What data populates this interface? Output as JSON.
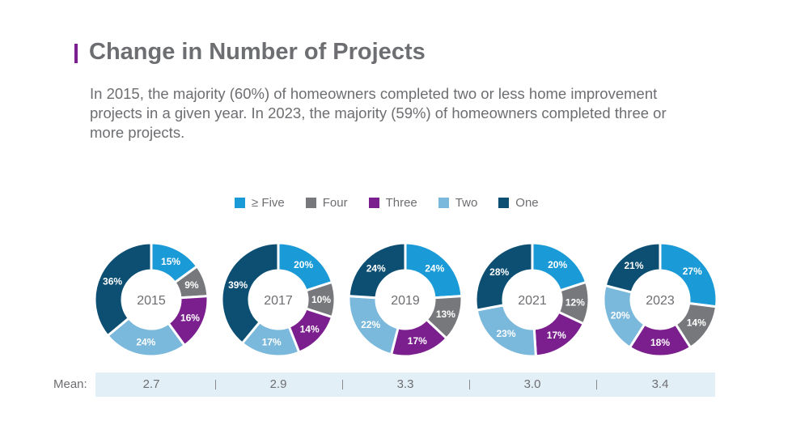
{
  "title": "Change in Number of Projects",
  "subtitle": "In 2015, the majority (60%) of homeowners completed two or less home improvement projects in a given year. In 2023, the majority (59%) of homeowners completed three or more projects.",
  "colors": {
    "accent": "#7b1f8f",
    "text": "#6d6e71",
    "mean_band": "#e3eff7"
  },
  "chart_data": {
    "type": "pie",
    "variant": "donut",
    "legend_position": "top",
    "categories": [
      "≥ Five",
      "Four",
      "Three",
      "Two",
      "One"
    ],
    "category_colors": [
      "#1a9ad6",
      "#77787b",
      "#7b1f8f",
      "#7ab8dc",
      "#0d4f73"
    ],
    "charts": [
      {
        "label": "2015",
        "values": [
          15,
          9,
          16,
          24,
          36
        ]
      },
      {
        "label": "2017",
        "values": [
          20,
          10,
          14,
          17,
          39
        ]
      },
      {
        "label": "2019",
        "values": [
          24,
          13,
          17,
          22,
          24
        ]
      },
      {
        "label": "2021",
        "values": [
          20,
          12,
          17,
          23,
          28
        ]
      },
      {
        "label": "2023",
        "values": [
          27,
          14,
          18,
          20,
          21
        ]
      }
    ],
    "mean_label": "Mean:",
    "means": [
      "2.7",
      "2.9",
      "3.3",
      "3.0",
      "3.4"
    ]
  }
}
